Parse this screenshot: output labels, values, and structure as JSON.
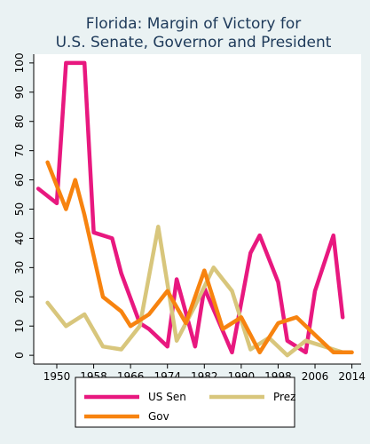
{
  "chart_data": {
    "type": "line",
    "title_line1": "Florida: Margin of Victory for",
    "title_line2": "U.S. Senate, Governor and President",
    "xlabel": "",
    "ylabel": "",
    "xlim": [
      1945,
      2016
    ],
    "ylim": [
      -3,
      103
    ],
    "x_ticks": [
      1950,
      1958,
      1966,
      1974,
      1982,
      1990,
      1998,
      2006,
      2014
    ],
    "y_ticks": [
      0,
      10,
      20,
      30,
      40,
      50,
      60,
      70,
      80,
      90,
      100
    ],
    "grid": false,
    "legend_position": "bottom",
    "series": [
      {
        "name": "US Sen",
        "color": "#e8187f",
        "points": [
          [
            1946,
            57
          ],
          [
            1950,
            52
          ],
          [
            1952,
            100
          ],
          [
            1954,
            100
          ],
          [
            1956,
            100
          ],
          [
            1958,
            42
          ],
          [
            1962,
            40
          ],
          [
            1964,
            28
          ],
          [
            1968,
            11
          ],
          [
            1970,
            9
          ],
          [
            1974,
            3
          ],
          [
            1976,
            26
          ],
          [
            1980,
            3
          ],
          [
            1982,
            23
          ],
          [
            1988,
            1
          ],
          [
            1992,
            35
          ],
          [
            1994,
            41
          ],
          [
            1998,
            25
          ],
          [
            2000,
            5
          ],
          [
            2004,
            1
          ],
          [
            2006,
            22
          ],
          [
            2010,
            41
          ],
          [
            2012,
            13
          ]
        ]
      },
      {
        "name": "Prez",
        "color": "#d8c67c",
        "points": [
          [
            1948,
            18
          ],
          [
            1952,
            10
          ],
          [
            1956,
            14
          ],
          [
            1960,
            3
          ],
          [
            1964,
            2
          ],
          [
            1968,
            10
          ],
          [
            1972,
            44
          ],
          [
            1976,
            5
          ],
          [
            1980,
            17
          ],
          [
            1984,
            30
          ],
          [
            1988,
            22
          ],
          [
            1992,
            2
          ],
          [
            1996,
            6
          ],
          [
            2000,
            0
          ],
          [
            2004,
            5
          ],
          [
            2008,
            3
          ],
          [
            2012,
            1
          ]
        ]
      },
      {
        "name": "Gov",
        "color": "#f7830f",
        "points": [
          [
            1948,
            66
          ],
          [
            1952,
            50
          ],
          [
            1954,
            60
          ],
          [
            1956,
            48
          ],
          [
            1960,
            20
          ],
          [
            1964,
            15
          ],
          [
            1966,
            10
          ],
          [
            1970,
            14
          ],
          [
            1974,
            22
          ],
          [
            1978,
            11
          ],
          [
            1982,
            29
          ],
          [
            1986,
            9
          ],
          [
            1990,
            13
          ],
          [
            1994,
            1
          ],
          [
            1998,
            11
          ],
          [
            2002,
            13
          ],
          [
            2006,
            7
          ],
          [
            2010,
            1
          ],
          [
            2014,
            1
          ]
        ]
      }
    ]
  }
}
